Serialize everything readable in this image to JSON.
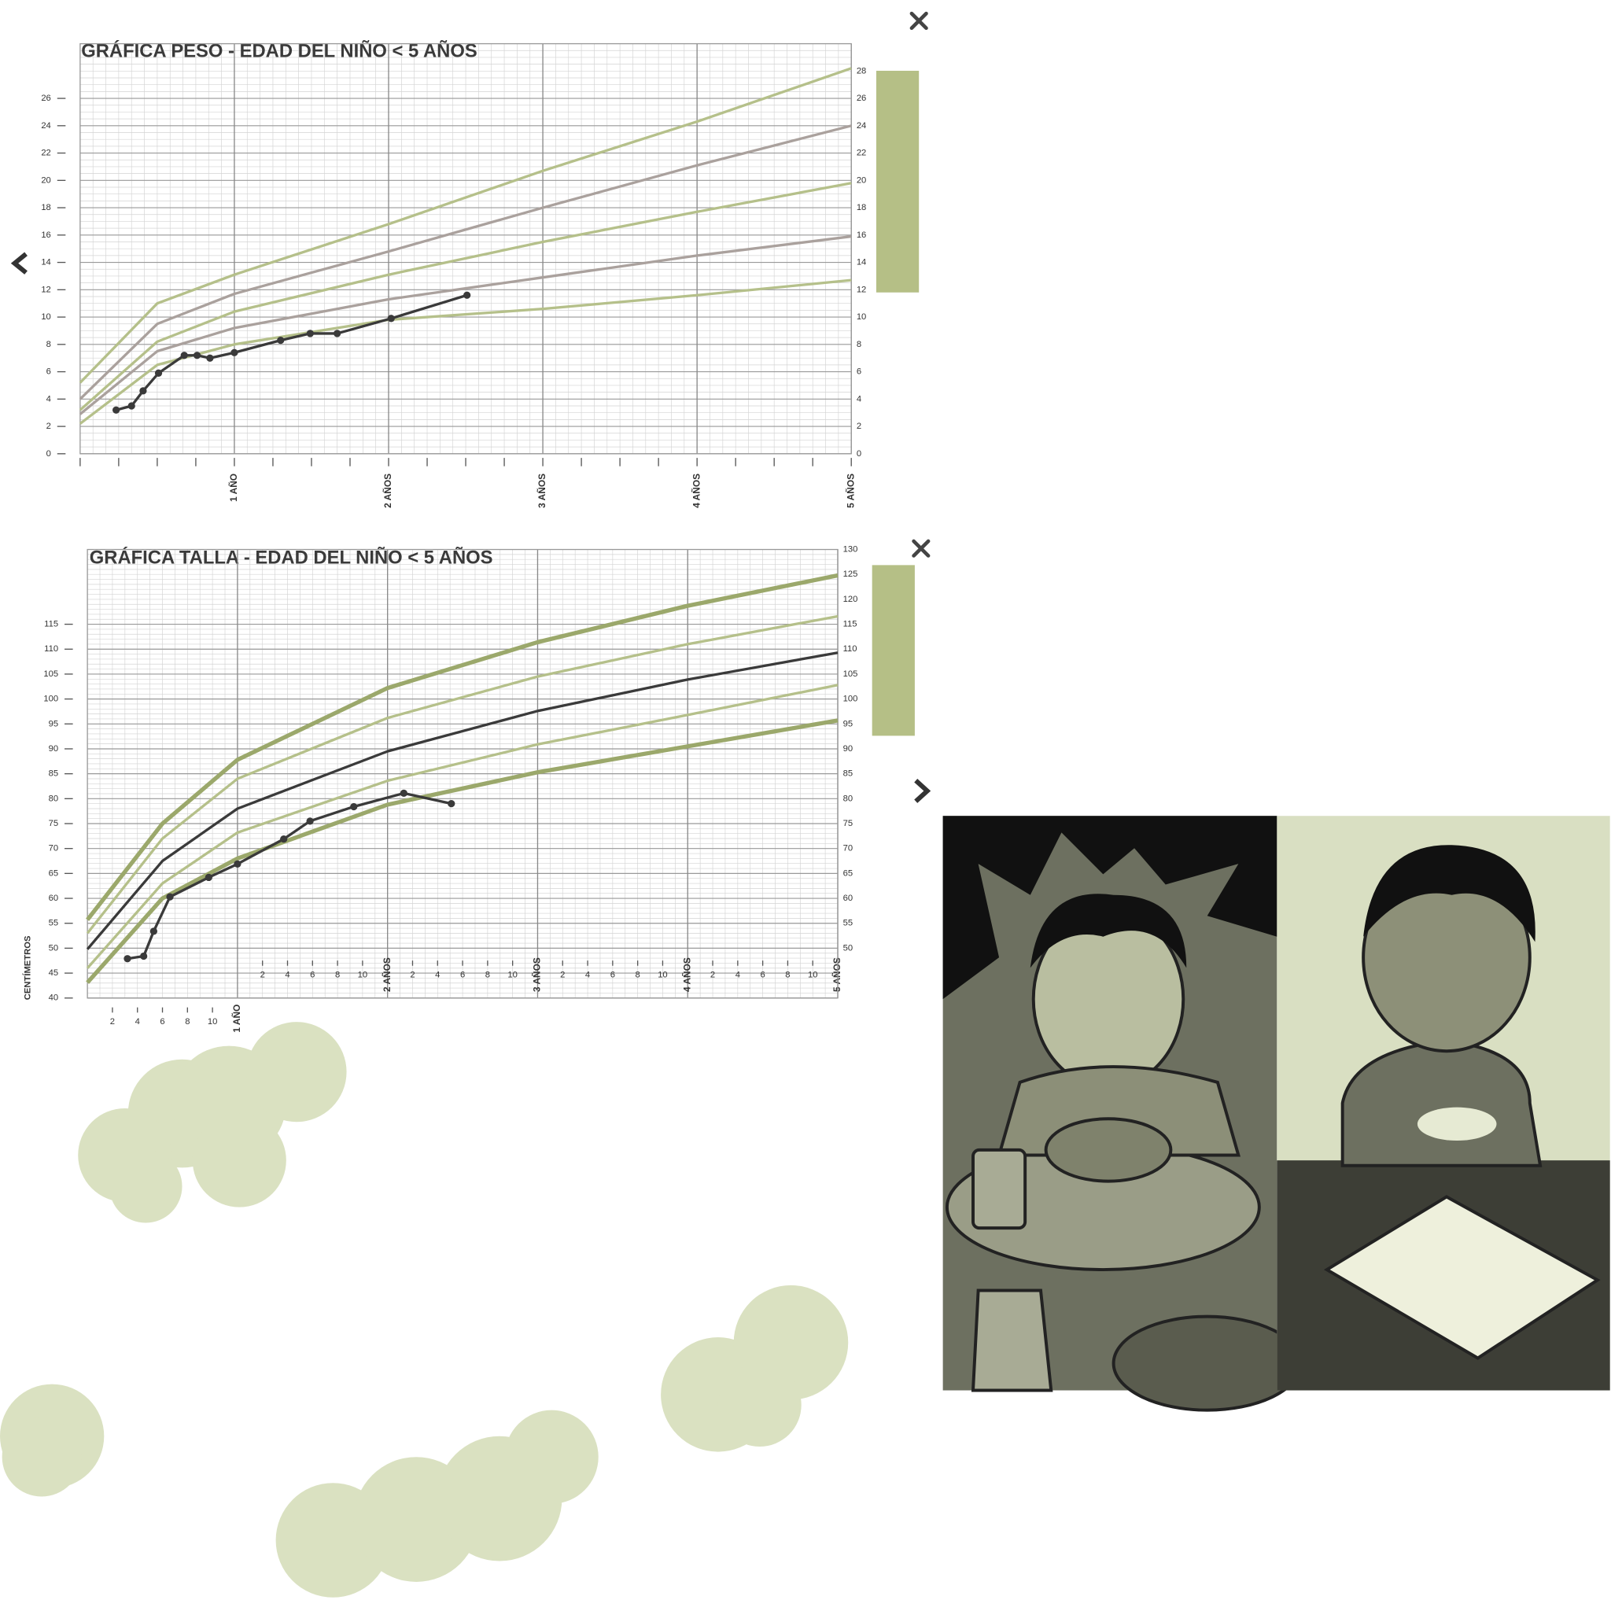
{
  "chart_data": [
    {
      "type": "line",
      "title": "GRÁFICA PESO - EDAD DEL NIÑO < 5 AÑOS",
      "xlim": [
        0,
        60
      ],
      "xticks": [
        {
          "value": 12,
          "label": "1 AÑO"
        },
        {
          "value": 24,
          "label": "2 AÑOS"
        },
        {
          "value": 36,
          "label": "3 AÑOS"
        },
        {
          "value": 48,
          "label": "4 AÑOS"
        },
        {
          "value": 60,
          "label": "5 AÑOS"
        }
      ],
      "ylim": [
        0,
        30
      ],
      "yticks": [
        0,
        2,
        4,
        6,
        8,
        10,
        12,
        14,
        16,
        18,
        20,
        22,
        24,
        26
      ],
      "y2lim": [
        0,
        30
      ],
      "y2ticks": [
        0,
        2,
        4,
        6,
        8,
        10,
        12,
        14,
        16,
        18,
        20,
        22,
        24,
        26,
        28
      ],
      "grid": true,
      "series": [
        {
          "color": "#b5c08a",
          "x": [
            0,
            6,
            12,
            24,
            36,
            48,
            60
          ],
          "values": [
            5.2,
            11.0,
            13.1,
            16.8,
            20.7,
            24.3,
            28.2
          ]
        },
        {
          "color": "#aaa19d",
          "x": [
            0,
            6,
            12,
            24,
            36,
            48,
            60
          ],
          "values": [
            4.0,
            9.5,
            11.7,
            14.8,
            18.0,
            21.1,
            24.0
          ]
        },
        {
          "color": "#b5c08a",
          "x": [
            0,
            6,
            12,
            24,
            36,
            48,
            60
          ],
          "values": [
            3.2,
            8.2,
            10.4,
            13.1,
            15.5,
            17.7,
            19.8
          ]
        },
        {
          "color": "#aaa19d",
          "x": [
            0,
            6,
            12,
            24,
            36,
            48,
            60
          ],
          "values": [
            2.9,
            7.5,
            9.2,
            11.3,
            12.9,
            14.5,
            15.9
          ]
        },
        {
          "color": "#b5c08a",
          "x": [
            0,
            6,
            12,
            24,
            36,
            48,
            60
          ],
          "values": [
            2.2,
            6.5,
            8.0,
            9.8,
            10.6,
            11.6,
            12.7
          ]
        },
        {
          "color": "#3a3a3a",
          "x": [
            2.8,
            4.0,
            4.9,
            6.1,
            8.1,
            9.1,
            10.1,
            12,
            15.6,
            17.9,
            20.0,
            24.2,
            30.1
          ],
          "values": [
            3.2,
            3.5,
            4.6,
            5.9,
            7.2,
            7.2,
            7.0,
            7.4,
            8.3,
            8.8,
            8.8,
            9.9,
            11.6
          ]
        }
      ]
    },
    {
      "type": "line",
      "title": "GRÁFICA TALLA - EDAD DEL NIÑO < 5 AÑOS",
      "y_label": "CENTÍMETROS",
      "xlim": [
        0,
        60
      ],
      "xticks": [
        2,
        4,
        6,
        8,
        10,
        {
          "value": 12,
          "label": "1 AÑO"
        },
        {
          "value": 14,
          "label": "2"
        },
        {
          "value": 16,
          "label": "4"
        },
        {
          "value": 18,
          "label": "6"
        },
        {
          "value": 20,
          "label": "8"
        },
        {
          "value": 22,
          "label": "10"
        },
        {
          "value": 24,
          "label": "2 AÑOS"
        },
        {
          "value": 26,
          "label": "2"
        },
        {
          "value": 28,
          "label": "4"
        },
        {
          "value": 30,
          "label": "6"
        },
        {
          "value": 32,
          "label": "8"
        },
        {
          "value": 34,
          "label": "10"
        },
        {
          "value": 36,
          "label": "3 AÑOS"
        },
        {
          "value": 38,
          "label": "2"
        },
        {
          "value": 40,
          "label": "4"
        },
        {
          "value": 42,
          "label": "6"
        },
        {
          "value": 44,
          "label": "8"
        },
        {
          "value": 46,
          "label": "10"
        },
        {
          "value": 48,
          "label": "4 AÑOS"
        },
        {
          "value": 50,
          "label": "2"
        },
        {
          "value": 52,
          "label": "4"
        },
        {
          "value": 54,
          "label": "6"
        },
        {
          "value": 56,
          "label": "8"
        },
        {
          "value": 58,
          "label": "10"
        },
        {
          "value": 60,
          "label": "5 AÑOS"
        }
      ],
      "ylim": [
        40,
        130
      ],
      "yticks": [
        40,
        45,
        50,
        55,
        60,
        65,
        70,
        75,
        80,
        85,
        90,
        95,
        100,
        105,
        110,
        115
      ],
      "y2lim": [
        40,
        130
      ],
      "y2ticks": [
        50,
        55,
        60,
        65,
        70,
        75,
        80,
        85,
        90,
        95,
        100,
        105,
        110,
        115,
        120,
        125,
        130
      ],
      "grid": true,
      "series": [
        {
          "color": "#9ba86b",
          "x": [
            0,
            6,
            12,
            24,
            36,
            48,
            60
          ],
          "values": [
            55.7,
            75.0,
            87.8,
            102.2,
            111.4,
            118.7,
            124.8
          ]
        },
        {
          "color": "#b5c08a",
          "x": [
            0,
            6,
            12,
            24,
            36,
            48,
            60
          ],
          "values": [
            53.0,
            72.0,
            84.0,
            96.2,
            104.5,
            111.0,
            116.6
          ]
        },
        {
          "color": "#3a3a3a",
          "x": [
            0,
            6,
            12,
            24,
            36,
            48,
            60
          ],
          "values": [
            49.8,
            67.5,
            78.0,
            89.5,
            97.6,
            103.9,
            109.3
          ]
        },
        {
          "color": "#b5c08a",
          "x": [
            0,
            6,
            12,
            24,
            36,
            48,
            60
          ],
          "values": [
            46.0,
            63.0,
            73.2,
            83.6,
            90.9,
            96.8,
            102.8
          ]
        },
        {
          "color": "#9ba86b",
          "x": [
            0,
            6,
            12,
            24,
            36,
            48,
            60
          ],
          "values": [
            43.1,
            60.0,
            68.0,
            78.8,
            85.3,
            90.5,
            95.7
          ]
        },
        {
          "color": "#3a3a3a",
          "x": [
            3.2,
            4.5,
            5.3,
            6.6,
            9.7,
            12,
            15.7,
            17.8,
            21.3,
            25.3,
            29.1
          ],
          "values": [
            47.9,
            48.4,
            53.4,
            60.3,
            64.2,
            66.9,
            71.9,
            75.5,
            78.4,
            81.1,
            79.0
          ]
        }
      ]
    }
  ]
}
